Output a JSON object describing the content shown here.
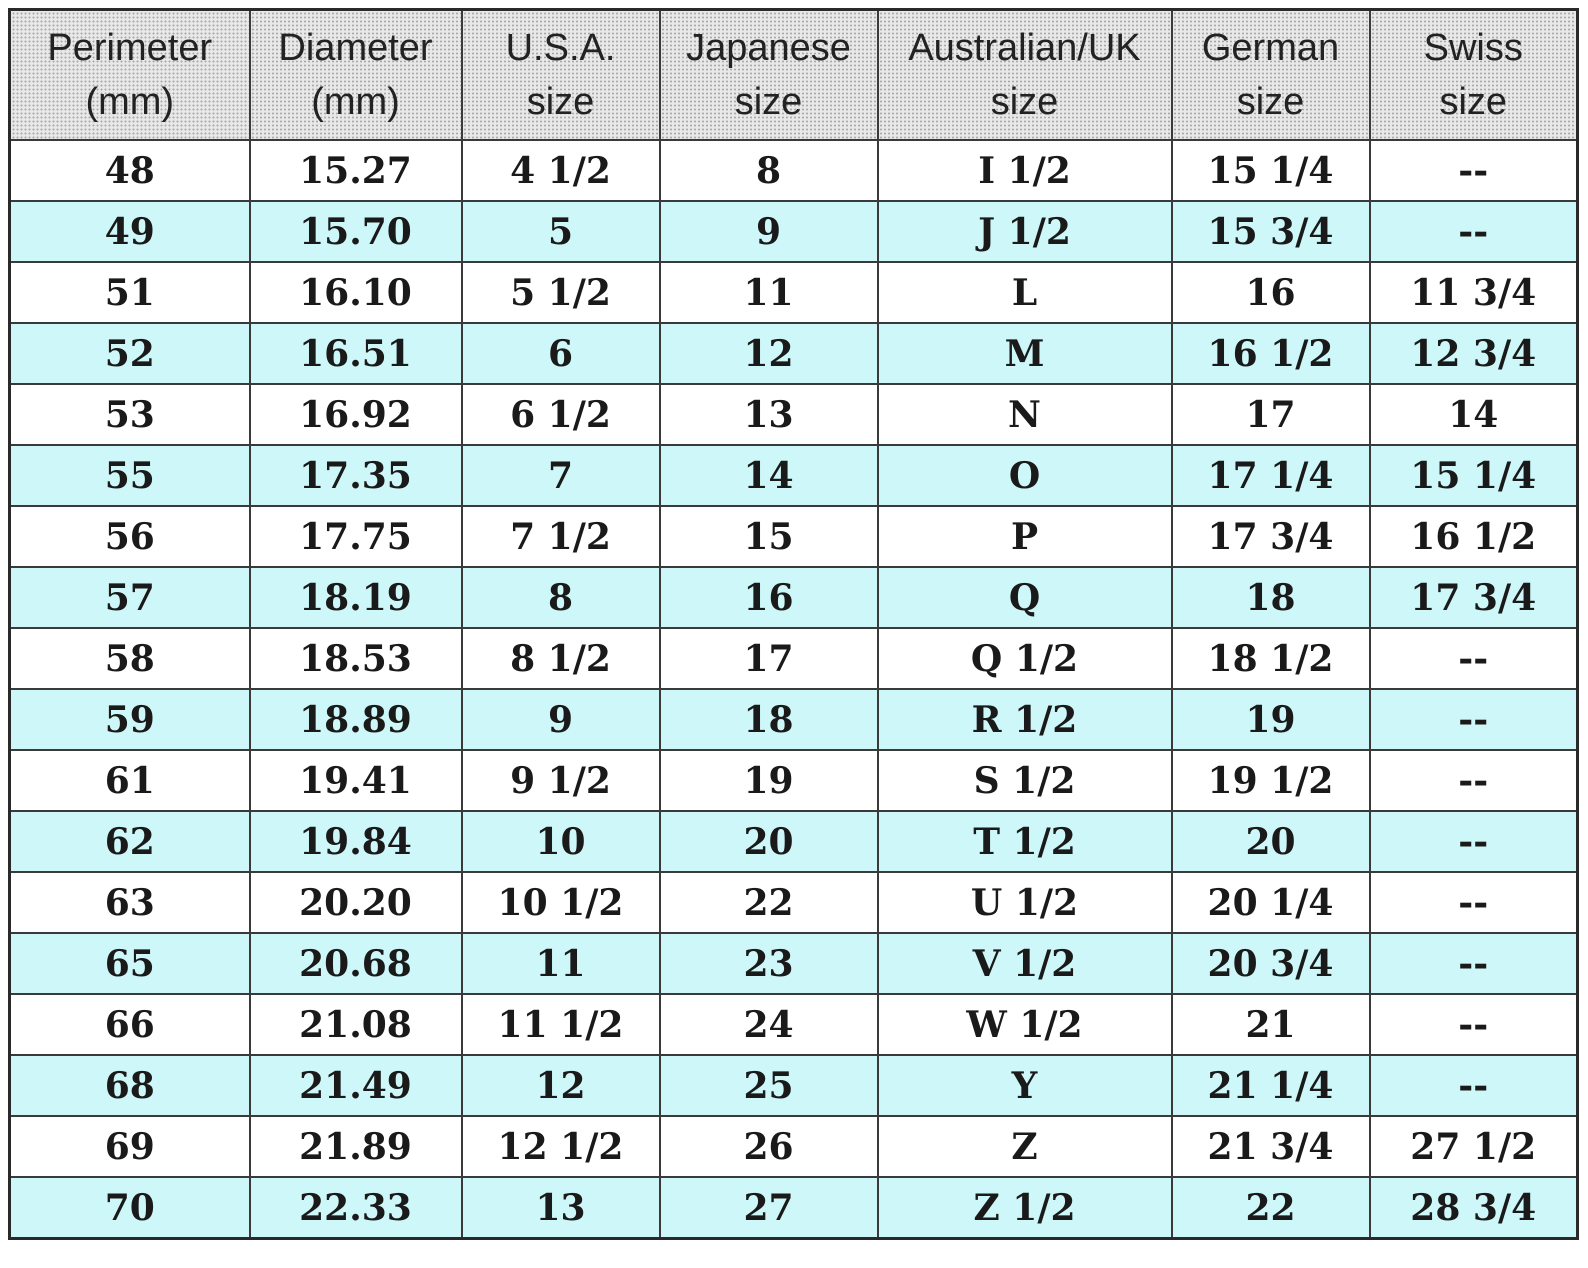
{
  "headers": [
    {
      "line1": "Perimeter",
      "line2": "(mm)"
    },
    {
      "line1": "Diameter",
      "line2": "(mm)"
    },
    {
      "line1": "U.S.A.",
      "line2": "size"
    },
    {
      "line1": "Japanese",
      "line2": "size"
    },
    {
      "line1": "Australian/UK",
      "line2": "size"
    },
    {
      "line1": "German",
      "line2": "size"
    },
    {
      "line1": "Swiss",
      "line2": "size"
    }
  ],
  "rows": [
    [
      "48",
      "15.27",
      "4 1/2",
      "8",
      "I 1/2",
      "15 1/4",
      "--"
    ],
    [
      "49",
      "15.70",
      "5",
      "9",
      "J 1/2",
      "15 3/4",
      "--"
    ],
    [
      "51",
      "16.10",
      "5 1/2",
      "11",
      "L",
      "16",
      "11 3/4"
    ],
    [
      "52",
      "16.51",
      "6",
      "12",
      "M",
      "16 1/2",
      "12 3/4"
    ],
    [
      "53",
      "16.92",
      "6 1/2",
      "13",
      "N",
      "17",
      "14"
    ],
    [
      "55",
      "17.35",
      "7",
      "14",
      "O",
      "17 1/4",
      "15 1/4"
    ],
    [
      "56",
      "17.75",
      "7 1/2",
      "15",
      "P",
      "17 3/4",
      "16 1/2"
    ],
    [
      "57",
      "18.19",
      "8",
      "16",
      "Q",
      "18",
      "17 3/4"
    ],
    [
      "58",
      "18.53",
      "8 1/2",
      "17",
      "Q 1/2",
      "18 1/2",
      "--"
    ],
    [
      "59",
      "18.89",
      "9",
      "18",
      "R 1/2",
      "19",
      "--"
    ],
    [
      "61",
      "19.41",
      "9 1/2",
      "19",
      "S 1/2",
      "19 1/2",
      "--"
    ],
    [
      "62",
      "19.84",
      "10",
      "20",
      "T 1/2",
      "20",
      "--"
    ],
    [
      "63",
      "20.20",
      "10 1/2",
      "22",
      "U 1/2",
      "20 1/4",
      "--"
    ],
    [
      "65",
      "20.68",
      "11",
      "23",
      "V 1/2",
      "20 3/4",
      "--"
    ],
    [
      "66",
      "21.08",
      "11 1/2",
      "24",
      "W 1/2",
      "21",
      "--"
    ],
    [
      "68",
      "21.49",
      "12",
      "25",
      "Y",
      "21 1/4",
      "--"
    ],
    [
      "69",
      "21.89",
      "12 1/2",
      "26",
      "Z",
      "21 3/4",
      "27 1/2"
    ],
    [
      "70",
      "22.33",
      "13",
      "27",
      "Z 1/2",
      "22",
      "28 3/4"
    ]
  ],
  "colors": {
    "alt_row": "#cdf7f9",
    "plain_row": "#ffffff",
    "border": "#3a3a3a"
  }
}
